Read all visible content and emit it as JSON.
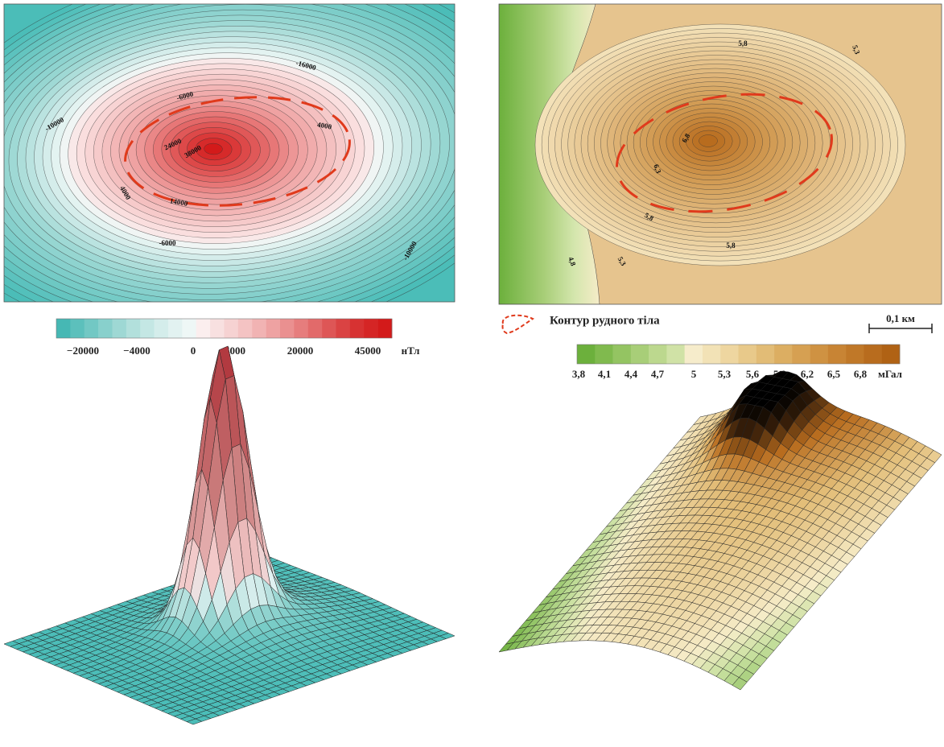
{
  "magnetic_map": {
    "contour_labels": [
      "-16000",
      "-6000",
      "-10000",
      "4000",
      "24000",
      "38000",
      "4000",
      "14000",
      "-6000",
      "-10000"
    ],
    "colorbar": {
      "labels": [
        "−20000",
        "−4000",
        "0",
        "4000",
        "20000",
        "45000"
      ],
      "unit": "нТл",
      "colors": [
        "#46b8b4",
        "#5cc0bc",
        "#72c8c4",
        "#88d0cc",
        "#9ed8d4",
        "#b2e0dc",
        "#c4e7e4",
        "#d4edeb",
        "#e2f2f1",
        "#eef7f6",
        "#fbeeee",
        "#f8e0e0",
        "#f6d2d2",
        "#f4c3c3",
        "#f1b3b3",
        "#eea2a2",
        "#ea9090",
        "#e67d7d",
        "#e26a6a",
        "#de5656",
        "#da4343",
        "#d73232",
        "#d52525",
        "#d31a1a"
      ]
    }
  },
  "gravity_map": {
    "contour_labels": [
      "5,8",
      "5,3",
      "6,8",
      "6,3",
      "5,8",
      "5,8",
      "4,8",
      "5,3"
    ],
    "legend": "Контур рудного тіла",
    "scale_bar": "0,1 км",
    "colorbar": {
      "labels": [
        "3,8",
        "4,1",
        "4,4",
        "4,7",
        "5",
        "5,3",
        "5,6",
        "5,9",
        "6,2",
        "6,5",
        "6,8"
      ],
      "unit": "мГал",
      "colors": [
        "#6cb03c",
        "#80ba4e",
        "#94c462",
        "#a8ce78",
        "#bcd88e",
        "#d0e2a6",
        "#f6eccb",
        "#f2e2b6",
        "#eed6a0",
        "#e8c98a",
        "#e2bc76",
        "#dcae62",
        "#d6a052",
        "#cf9242",
        "#c88434",
        "#c07828",
        "#b86c1e",
        "#b06214"
      ]
    }
  }
}
